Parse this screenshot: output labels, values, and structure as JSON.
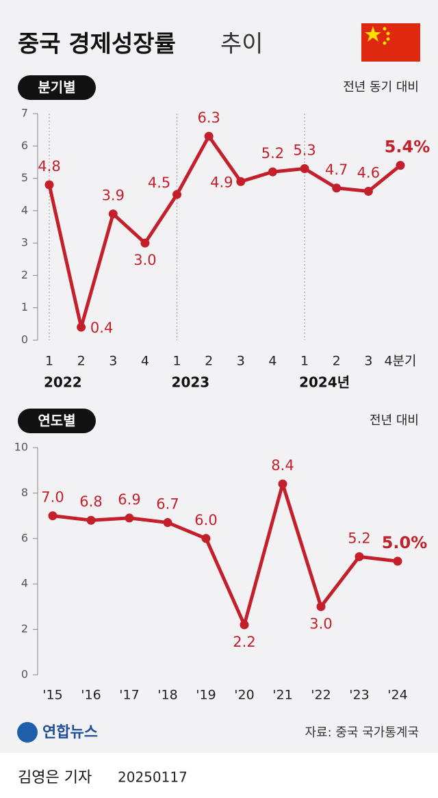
{
  "title": "중국 경제성장률",
  "title_suffix": "추이",
  "chart_data": [
    {
      "type": "line",
      "label": "분기별",
      "unit_note": "전년 동기 대비",
      "color": "#c3202b",
      "categories": [
        "1",
        "2",
        "3",
        "4",
        "1",
        "2",
        "3",
        "4",
        "1",
        "2",
        "3",
        "4분기"
      ],
      "year_labels": [
        "2022",
        "2023",
        "2024년"
      ],
      "values": [
        4.8,
        0.4,
        3.9,
        3.0,
        4.5,
        6.3,
        4.9,
        5.2,
        5.3,
        4.7,
        4.6,
        5.4
      ],
      "value_labels": [
        "4.8",
        "0.4",
        "3.9",
        "3.0",
        "4.5",
        "6.3",
        "4.9",
        "5.2",
        "5.3",
        "4.7",
        "4.6",
        "5.4%"
      ],
      "ylim": [
        0,
        7
      ],
      "yticks": [
        0,
        1,
        2,
        3,
        4,
        5,
        6,
        7
      ]
    },
    {
      "type": "line",
      "label": "연도별",
      "unit_note": "전년 대비",
      "color": "#c3202b",
      "categories": [
        "'15",
        "'16",
        "'17",
        "'18",
        "'19",
        "'20",
        "'21",
        "'22",
        "'23",
        "'24"
      ],
      "values": [
        7.0,
        6.8,
        6.9,
        6.7,
        6.0,
        2.2,
        8.4,
        3.0,
        5.2,
        5.0
      ],
      "value_labels": [
        "7.0",
        "6.8",
        "6.9",
        "6.7",
        "6.0",
        "2.2",
        "8.4",
        "3.0",
        "5.2",
        "5.0%"
      ],
      "ylim": [
        0,
        10
      ],
      "yticks": [
        0,
        2,
        4,
        6,
        8,
        10
      ]
    }
  ],
  "footer": {
    "logo": "연합뉴스",
    "source": "자료: 중국 국가통계국",
    "reporter": "김영은 기자",
    "date": "20250117"
  }
}
